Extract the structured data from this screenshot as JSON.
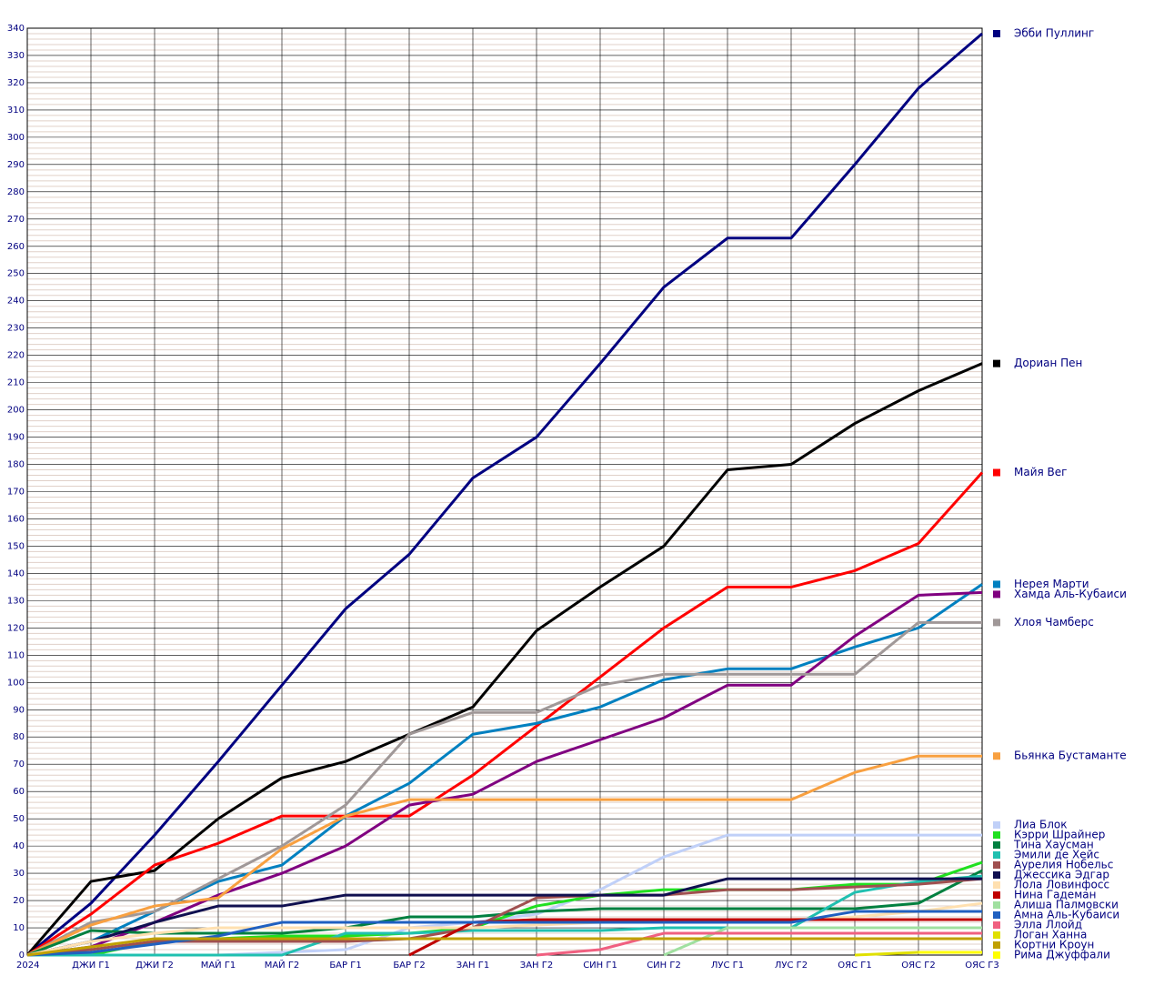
{
  "chart_data": {
    "type": "line",
    "categories": [
      "2024",
      "ДЖИ Г1",
      "ДЖИ Г2",
      "МАЙ Г1",
      "МАЙ Г2",
      "БАР Г1",
      "БАР Г2",
      "ЗАН Г1",
      "ЗАН Г2",
      "СИН Г1",
      "СИН Г2",
      "ЛУС Г1",
      "ЛУС Г2",
      "ОЯС Г1",
      "ОЯС Г2",
      "ОЯС Г3"
    ],
    "ylim": [
      0,
      340
    ],
    "yticks": [
      0,
      10,
      20,
      30,
      40,
      50,
      60,
      70,
      80,
      90,
      100,
      110,
      120,
      130,
      140,
      150,
      160,
      170,
      180,
      190,
      200,
      210,
      220,
      230,
      240,
      250,
      260,
      270,
      280,
      290,
      300,
      310,
      320,
      330,
      340
    ],
    "grid": true,
    "series": [
      {
        "name": "Эбби Пуллинг",
        "color": "#000080",
        "values": [
          0,
          19,
          44,
          71,
          99,
          127,
          147,
          175,
          190,
          217,
          245,
          263,
          263,
          290,
          318,
          338
        ]
      },
      {
        "name": "Дориан Пен",
        "color": "#000000",
        "values": [
          0,
          27,
          31,
          50,
          65,
          71,
          81,
          91,
          119,
          135,
          150,
          178,
          180,
          195,
          207,
          217
        ]
      },
      {
        "name": "Майя Вег",
        "color": "#ff0000",
        "values": [
          0,
          15,
          33,
          41,
          51,
          51,
          51,
          66,
          84,
          102,
          120,
          135,
          135,
          141,
          151,
          177
        ]
      },
      {
        "name": "Нерея Марти",
        "color": "#0080c0",
        "values": [
          0,
          5,
          16,
          27,
          33,
          51,
          63,
          81,
          85,
          91,
          101,
          105,
          105,
          113,
          120,
          136
        ]
      },
      {
        "name": "Хамда Аль-Кубаиси",
        "color": "#800080",
        "values": [
          0,
          3,
          12,
          22,
          30,
          40,
          55,
          59,
          71,
          79,
          87,
          99,
          99,
          117,
          132,
          133
        ]
      },
      {
        "name": "Хлоя Чамберс",
        "color": "#a09898",
        "values": [
          0,
          12,
          16,
          28,
          40,
          55,
          81,
          89,
          89,
          99,
          103,
          103,
          103,
          103,
          122,
          122
        ]
      },
      {
        "name": "Бьянка Бустаманте",
        "color": "#f8a040",
        "values": [
          0,
          11,
          18,
          21,
          39,
          51,
          57,
          57,
          57,
          57,
          57,
          57,
          57,
          67,
          73,
          73
        ]
      },
      {
        "name": "Лиа Блок",
        "color": "#c0d0f8",
        "values": [
          0,
          0,
          0,
          0,
          1,
          2,
          10,
          12,
          15,
          24,
          36,
          44,
          44,
          44,
          44,
          44
        ]
      },
      {
        "name": "Кэрри Шрайнер",
        "color": "#20e020",
        "values": [
          0,
          0,
          5,
          6,
          7,
          7,
          8,
          10,
          18,
          22,
          24,
          24,
          24,
          26,
          26,
          34
        ]
      },
      {
        "name": "Тина Хаусман",
        "color": "#008040",
        "values": [
          0,
          9,
          8,
          8,
          8,
          10,
          14,
          14,
          16,
          17,
          17,
          17,
          17,
          17,
          19,
          31
        ]
      },
      {
        "name": "Эмили де Хейс",
        "color": "#20c0b0",
        "values": [
          0,
          0,
          0,
          0,
          0,
          8,
          8,
          9,
          9,
          9,
          10,
          10,
          10,
          23,
          27,
          29
        ]
      },
      {
        "name": "Аурелия Нобельс",
        "color": "#a05050",
        "values": [
          0,
          2,
          5,
          5,
          5,
          5,
          6,
          10,
          21,
          22,
          22,
          24,
          24,
          25,
          26,
          28
        ]
      },
      {
        "name": "Джессика Эдгар",
        "color": "#101050",
        "values": [
          0,
          5,
          12,
          18,
          18,
          22,
          22,
          22,
          22,
          22,
          22,
          28,
          28,
          28,
          28,
          28
        ]
      },
      {
        "name": "Лола Ловинфосс",
        "color": "#ffe0b0",
        "values": [
          0,
          5,
          8,
          10,
          10,
          10,
          10,
          10,
          11,
          12,
          13,
          13,
          13,
          14,
          16,
          19
        ]
      },
      {
        "name": "Нина Гадеман",
        "color": "#c00000",
        "values": [
          null,
          null,
          null,
          null,
          null,
          null,
          0,
          12,
          13,
          13,
          13,
          13,
          13,
          13,
          13,
          13
        ]
      },
      {
        "name": "Алиша Палмовски",
        "color": "#a0e0a0",
        "values": [
          null,
          null,
          null,
          null,
          null,
          null,
          null,
          null,
          null,
          null,
          0,
          10,
          10,
          10,
          10,
          10
        ]
      },
      {
        "name": "Амна Аль-Кубаиси",
        "color": "#2060c0",
        "values": [
          0,
          1,
          4,
          7,
          12,
          12,
          12,
          12,
          12,
          12,
          12,
          12,
          12,
          16,
          16,
          16
        ]
      },
      {
        "name": "Элла Ллойд",
        "color": "#f06080",
        "values": [
          null,
          null,
          null,
          null,
          null,
          null,
          null,
          null,
          0,
          2,
          8,
          8,
          8,
          8,
          8,
          8
        ]
      },
      {
        "name": "Логан Ханна",
        "color": "#e0e000",
        "values": [
          null,
          null,
          null,
          null,
          null,
          null,
          null,
          null,
          null,
          null,
          null,
          null,
          null,
          0,
          1,
          1
        ]
      },
      {
        "name": "Кортни Кроун",
        "color": "#c0a000",
        "values": [
          0,
          3,
          6,
          6,
          6,
          6,
          6,
          6,
          6,
          6,
          6,
          6,
          6,
          6,
          6,
          6
        ]
      },
      {
        "name": "Рима Джуффали",
        "color": "#ffff00",
        "values": [
          null,
          null,
          null,
          null,
          null,
          null,
          null,
          null,
          null,
          null,
          null,
          null,
          null,
          null,
          1,
          1
        ]
      }
    ]
  }
}
